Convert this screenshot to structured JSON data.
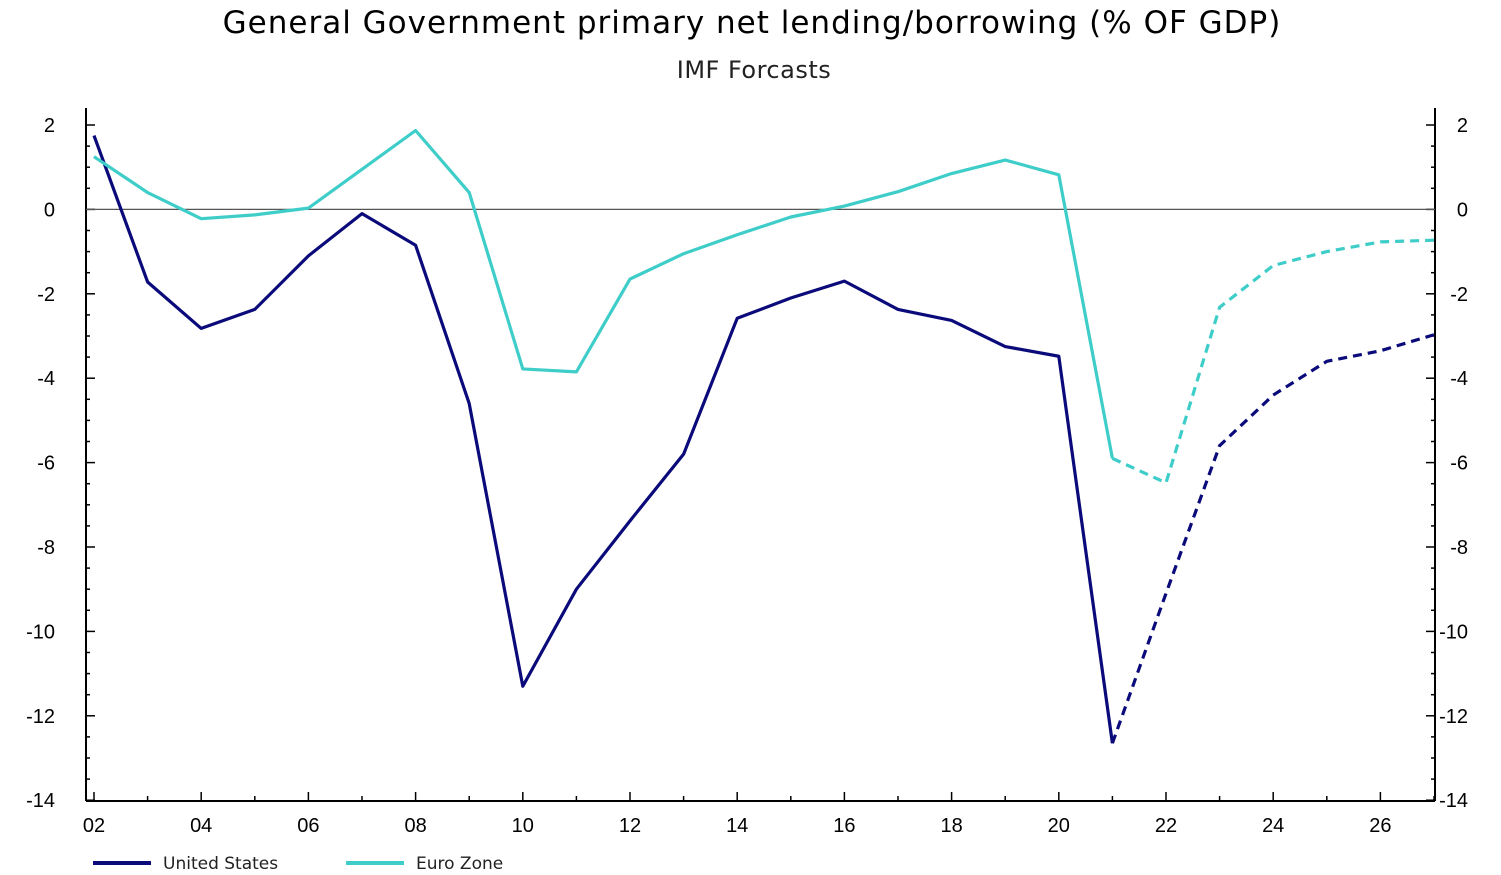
{
  "chart_data": {
    "type": "line",
    "title": "General Government primary net lending/borrowing (% OF GDP)",
    "subtitle": "IMF Forcasts",
    "x": [
      2002,
      2003,
      2004,
      2005,
      2006,
      2007,
      2008,
      2009,
      2010,
      2011,
      2012,
      2013,
      2014,
      2015,
      2016,
      2017,
      2018,
      2019,
      2020,
      2021,
      2022,
      2023,
      2024,
      2025,
      2026,
      2027
    ],
    "x_tick_labels": [
      "02",
      "04",
      "06",
      "08",
      "10",
      "12",
      "14",
      "16",
      "18",
      "20",
      "22",
      "24",
      "26"
    ],
    "y_tick_labels": [
      "2",
      "0",
      "-2",
      "-4",
      "-6",
      "-8",
      "-10",
      "-12",
      "-14"
    ],
    "ylim": [
      -14,
      2.3
    ],
    "xlim": [
      2002,
      2027
    ],
    "forecast_start": 2021,
    "zero_line": true,
    "legend_position": "bottom-left",
    "series": [
      {
        "name": "United States",
        "color": "#0a0a7a",
        "values": [
          1.75,
          -1.72,
          -2.82,
          -2.37,
          -1.1,
          -0.1,
          -0.85,
          -4.6,
          -11.3,
          -9.0,
          -7.38,
          -5.8,
          -2.58,
          -2.1,
          -1.7,
          -2.37,
          -2.63,
          -3.25,
          -3.48,
          -12.65,
          -9.1,
          -5.6,
          -4.4,
          -3.6,
          -3.35,
          -2.97
        ]
      },
      {
        "name": "Euro Zone",
        "color": "#3ecdc8",
        "values": [
          1.25,
          0.4,
          -0.22,
          -0.13,
          0.03,
          0.95,
          1.87,
          0.4,
          -3.78,
          -3.85,
          -1.65,
          -1.05,
          -0.6,
          -0.18,
          0.08,
          0.42,
          0.85,
          1.17,
          0.82,
          -5.9,
          -6.48,
          -2.32,
          -1.33,
          -1.0,
          -0.77,
          -0.73
        ]
      }
    ]
  }
}
